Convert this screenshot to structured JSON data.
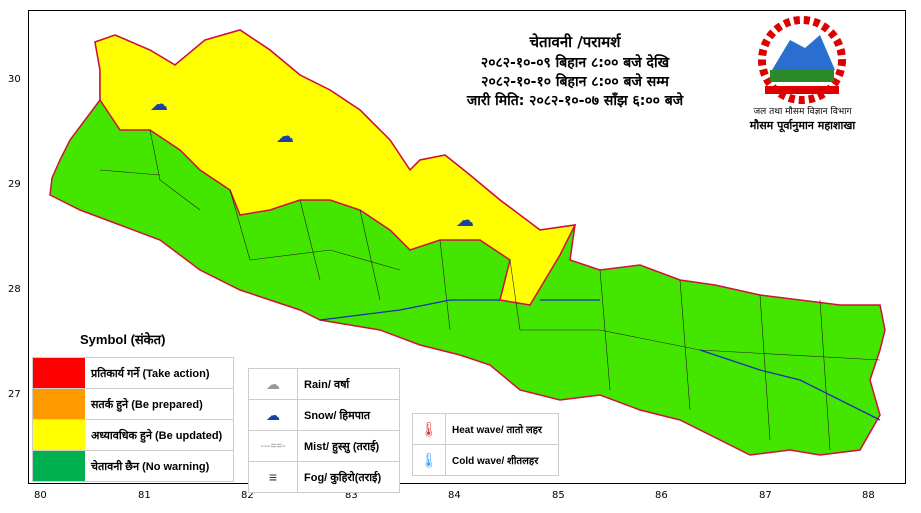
{
  "header": {
    "title": "चेतावनी /परामर्श",
    "valid_from": "२०८२-१०-०९ बिहान ८:०० बजे देखि",
    "valid_to": "२०८२-१०-१० बिहान ८:०० बजे सम्म",
    "issued": "जारी मिति: २०८२-१०-०७ साँझ ६:०० बजे"
  },
  "logo": {
    "department": "जल तथा मौसम विज्ञान विभाग",
    "division": "मौसम पूर्वानुमान महाशाखा"
  },
  "axes": {
    "x_ticks": [
      "80",
      "81",
      "82",
      "83",
      "84",
      "85",
      "86",
      "87",
      "88"
    ],
    "y_ticks": [
      "30",
      "29",
      "28",
      "27"
    ]
  },
  "map": {
    "yellow_color": "#ffff00",
    "green_color": "#44e600",
    "snow_icons": 3
  },
  "legend": {
    "title": "Symbol (संकेत)",
    "levels": [
      {
        "label": "प्रतिकार्य गर्ने (Take action)",
        "color": "#ff0000"
      },
      {
        "label": "सतर्क हुने (Be prepared)",
        "color": "#ff9900"
      },
      {
        "label": "अध्यावधिक हुने (Be updated)",
        "color": "#ffff00"
      },
      {
        "label": "चेतावनी छैन (No warning)",
        "color": "#00b050"
      }
    ],
    "symbols": [
      {
        "icon": "rain-cloud-icon",
        "label": "Rain/ वर्षा"
      },
      {
        "icon": "snow-cloud-icon",
        "label": "Snow/ हिमपात"
      },
      {
        "icon": "mist-icon",
        "label": "Mist/ हुस्सु (तराई)"
      },
      {
        "icon": "fog-icon",
        "label": "Fog/ कुहिरो(तराई)"
      }
    ],
    "temperature": [
      {
        "icon": "heat-thermometer-icon",
        "label": "Heat wave/ तातो लहर"
      },
      {
        "icon": "cold-thermometer-icon",
        "label": "Cold wave/ शीतलहर"
      }
    ]
  }
}
